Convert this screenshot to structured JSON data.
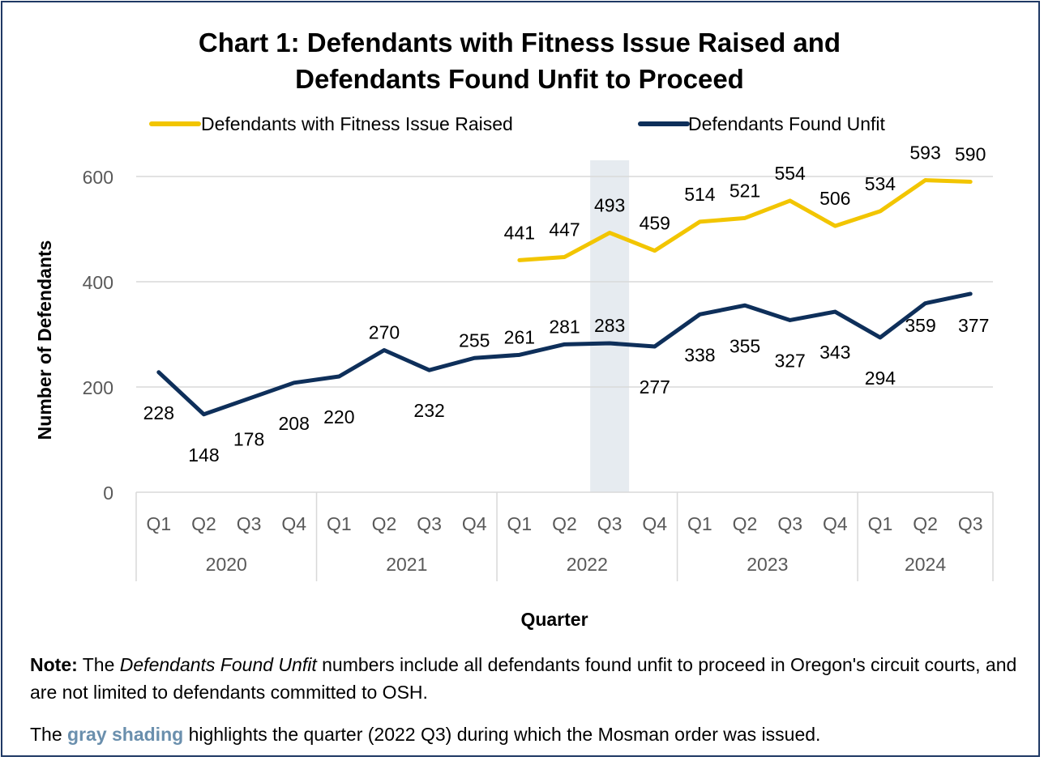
{
  "chart_data": {
    "type": "line",
    "title": [
      "Chart 1: Defendants with Fitness Issue Raised and",
      "Defendants Found Unfit to Proceed"
    ],
    "xlabel": "Quarter",
    "ylabel": "Number of Defendants",
    "ylim": [
      0,
      600
    ],
    "yticks": [
      0,
      200,
      400,
      600
    ],
    "grid": true,
    "legend_position": "top",
    "quarters": [
      "Q1",
      "Q2",
      "Q3",
      "Q4",
      "Q1",
      "Q2",
      "Q3",
      "Q4",
      "Q1",
      "Q2",
      "Q3",
      "Q4",
      "Q1",
      "Q2",
      "Q3",
      "Q4",
      "Q1",
      "Q2",
      "Q3"
    ],
    "years": [
      {
        "label": "2020",
        "count": 4
      },
      {
        "label": "2021",
        "count": 4
      },
      {
        "label": "2022",
        "count": 4
      },
      {
        "label": "2023",
        "count": 4
      },
      {
        "label": "2024",
        "count": 3
      }
    ],
    "highlight_quarter": {
      "year": "2022",
      "quarter": "Q3",
      "color": "#e6ebf0"
    },
    "series": [
      {
        "name": "Defendants with Fitness Issue Raised",
        "color": "#f2c500",
        "values": [
          null,
          null,
          null,
          null,
          null,
          null,
          null,
          null,
          441,
          447,
          493,
          459,
          514,
          521,
          554,
          506,
          534,
          593,
          590
        ]
      },
      {
        "name": "Defendants Found Unfit",
        "color": "#0e2f5a",
        "values": [
          228,
          148,
          178,
          208,
          220,
          270,
          232,
          255,
          261,
          281,
          283,
          277,
          338,
          355,
          327,
          343,
          294,
          359,
          377
        ]
      }
    ]
  },
  "notes": {
    "note_label": "Note:",
    "note_pre": " The ",
    "note_italic": "Defendants Found Unfit",
    "note_post": " numbers include all defendants found unfit to proceed in Oregon's circuit courts, and are not limited to defendants committed to OSH.",
    "shade_pre": "The ",
    "shade_word": "gray shading",
    "shade_post": " highlights the quarter (2022 Q3) during which the Mosman order was issued."
  }
}
